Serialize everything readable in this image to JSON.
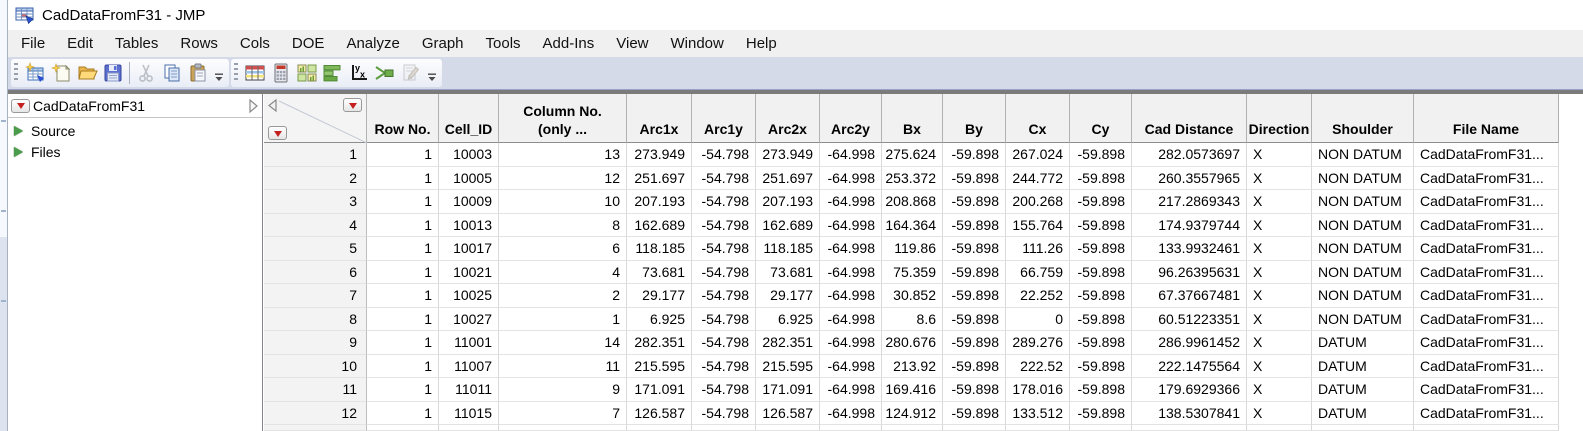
{
  "window": {
    "title": "CadDataFromF31 - JMP"
  },
  "menu": {
    "items": [
      "File",
      "Edit",
      "Tables",
      "Rows",
      "Cols",
      "DOE",
      "Analyze",
      "Graph",
      "Tools",
      "Add-Ins",
      "View",
      "Window",
      "Help"
    ]
  },
  "toolbar": {
    "group1_icons": [
      "new-data-table-icon",
      "new-window-icon",
      "open-folder-icon",
      "save-icon",
      "cut-icon",
      "copy-icon",
      "paste-icon"
    ],
    "group2_icons": [
      "data-table-icon",
      "summary-calculator-icon",
      "distribution-grid-icon",
      "graph-builder-icon",
      "fit-y-by-x-icon",
      "formula-icon",
      "journal-pencil-icon"
    ]
  },
  "colors": {
    "toolbar_band": "#d5dae9",
    "red_triangle": "#c51f1f",
    "green_triangle": "#4a9b4a",
    "header_bg": "#f1f1f1"
  },
  "sidebar": {
    "title": "CadDataFromF31",
    "items": [
      {
        "label": "Source"
      },
      {
        "label": "Files"
      }
    ]
  },
  "table": {
    "columns": [
      "Row No.",
      "Cell_ID",
      "Column No.\n(only ...",
      "Arc1x",
      "Arc1y",
      "Arc2x",
      "Arc2y",
      "Bx",
      "By",
      "Cx",
      "Cy",
      "Cad Distance",
      "Direction",
      "Shoulder",
      "File Name"
    ],
    "rows": [
      [
        "1",
        "1",
        "10003",
        "13",
        "273.949",
        "-54.798",
        "273.949",
        "-64.998",
        "275.624",
        "-59.898",
        "267.024",
        "-59.898",
        "282.0573697",
        "X",
        "NON DATUM",
        "CadDataFromF31..."
      ],
      [
        "2",
        "1",
        "10005",
        "12",
        "251.697",
        "-54.798",
        "251.697",
        "-64.998",
        "253.372",
        "-59.898",
        "244.772",
        "-59.898",
        "260.3557965",
        "X",
        "NON DATUM",
        "CadDataFromF31..."
      ],
      [
        "3",
        "1",
        "10009",
        "10",
        "207.193",
        "-54.798",
        "207.193",
        "-64.998",
        "208.868",
        "-59.898",
        "200.268",
        "-59.898",
        "217.2869343",
        "X",
        "NON DATUM",
        "CadDataFromF31..."
      ],
      [
        "4",
        "1",
        "10013",
        "8",
        "162.689",
        "-54.798",
        "162.689",
        "-64.998",
        "164.364",
        "-59.898",
        "155.764",
        "-59.898",
        "174.9379744",
        "X",
        "NON DATUM",
        "CadDataFromF31..."
      ],
      [
        "5",
        "1",
        "10017",
        "6",
        "118.185",
        "-54.798",
        "118.185",
        "-64.998",
        "119.86",
        "-59.898",
        "111.26",
        "-59.898",
        "133.9932461",
        "X",
        "NON DATUM",
        "CadDataFromF31..."
      ],
      [
        "6",
        "1",
        "10021",
        "4",
        "73.681",
        "-54.798",
        "73.681",
        "-64.998",
        "75.359",
        "-59.898",
        "66.759",
        "-59.898",
        "96.26395631",
        "X",
        "NON DATUM",
        "CadDataFromF31..."
      ],
      [
        "7",
        "1",
        "10025",
        "2",
        "29.177",
        "-54.798",
        "29.177",
        "-64.998",
        "30.852",
        "-59.898",
        "22.252",
        "-59.898",
        "67.37667481",
        "X",
        "NON DATUM",
        "CadDataFromF31..."
      ],
      [
        "8",
        "1",
        "10027",
        "1",
        "6.925",
        "-54.798",
        "6.925",
        "-64.998",
        "8.6",
        "-59.898",
        "0",
        "-59.898",
        "60.51223351",
        "X",
        "NON DATUM",
        "CadDataFromF31..."
      ],
      [
        "9",
        "1",
        "11001",
        "14",
        "282.351",
        "-54.798",
        "282.351",
        "-64.998",
        "280.676",
        "-59.898",
        "289.276",
        "-59.898",
        "286.9961452",
        "X",
        "DATUM",
        "CadDataFromF31..."
      ],
      [
        "10",
        "1",
        "11007",
        "11",
        "215.595",
        "-54.798",
        "215.595",
        "-64.998",
        "213.92",
        "-59.898",
        "222.52",
        "-59.898",
        "222.1475564",
        "X",
        "DATUM",
        "CadDataFromF31..."
      ],
      [
        "11",
        "1",
        "11011",
        "9",
        "171.091",
        "-54.798",
        "171.091",
        "-64.998",
        "169.416",
        "-59.898",
        "178.016",
        "-59.898",
        "179.6929366",
        "X",
        "DATUM",
        "CadDataFromF31..."
      ],
      [
        "12",
        "1",
        "11015",
        "7",
        "126.587",
        "-54.798",
        "126.587",
        "-64.998",
        "124.912",
        "-59.898",
        "133.512",
        "-59.898",
        "138.5307841",
        "X",
        "DATUM",
        "CadDataFromF31..."
      ]
    ]
  }
}
